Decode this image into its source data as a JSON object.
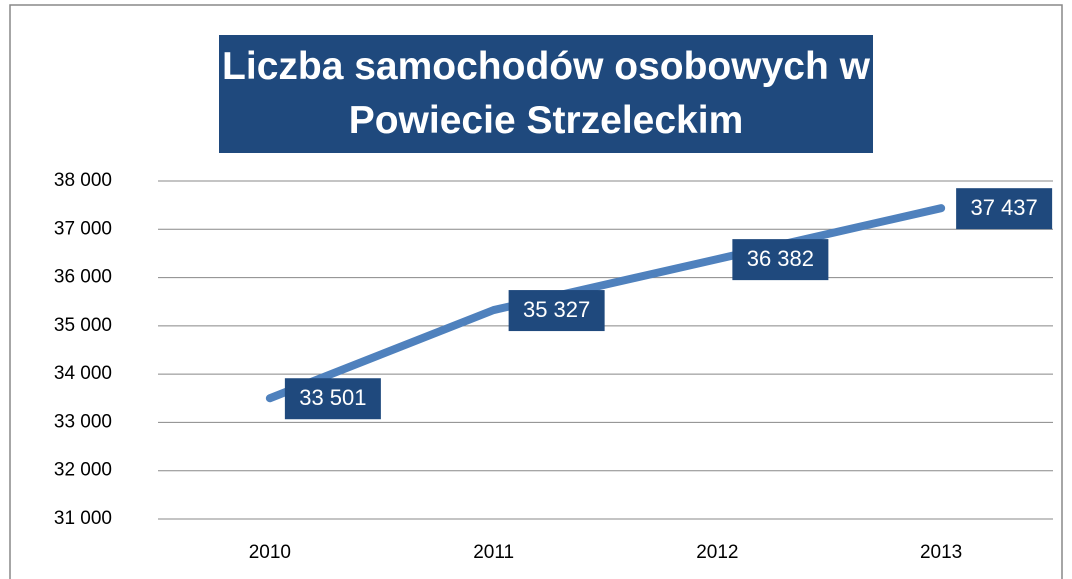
{
  "chart_data": {
    "type": "line",
    "title": "Liczba samochodów osobowych w Powiecie Strzeleckim",
    "categories": [
      "2010",
      "2011",
      "2012",
      "2013"
    ],
    "values": [
      33501,
      35327,
      36382,
      37437
    ],
    "value_labels": [
      "33 501",
      "35 327",
      "36 382",
      "37 437"
    ],
    "color": "#4f81bd",
    "label_color": "#1f497d",
    "ylim": [
      31000,
      38000
    ],
    "yticks": [
      {
        "value": 31000,
        "label": "31 000"
      },
      {
        "value": 32000,
        "label": "32 000"
      },
      {
        "value": 33000,
        "label": "33 000"
      },
      {
        "value": 34000,
        "label": "34 000"
      },
      {
        "value": 35000,
        "label": "35 000"
      },
      {
        "value": 36000,
        "label": "36 000"
      },
      {
        "value": 37000,
        "label": "37 000"
      },
      {
        "value": 38000,
        "label": "38 000"
      }
    ],
    "grid": true
  }
}
